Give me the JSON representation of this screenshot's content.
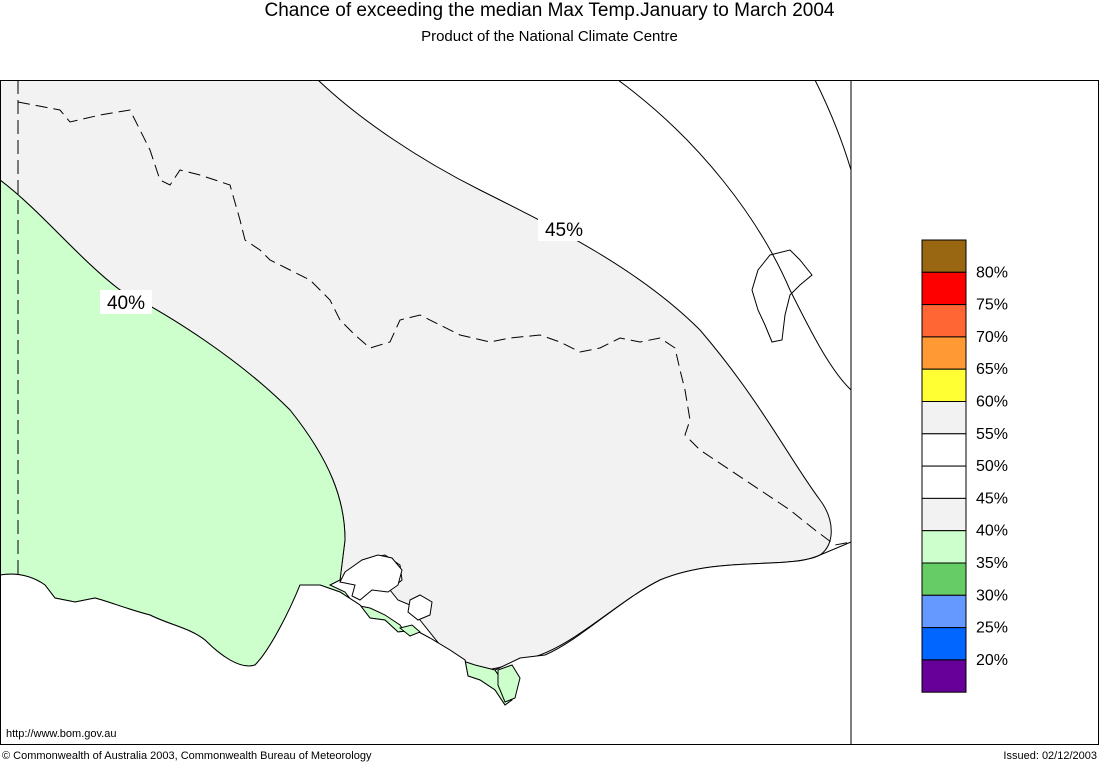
{
  "header": {
    "title": "Chance of exceeding the median Max Temp.January to March 2004",
    "subtitle": "Product of the National Climate Centre"
  },
  "map": {
    "contour_labels": [
      "40%",
      "45%"
    ],
    "colors": {
      "light_green": "#ccffcc",
      "light_grey": "#f2f2f2",
      "white": "#ffffff"
    }
  },
  "legend": {
    "items": [
      {
        "label": "80%",
        "color": "#996611"
      },
      {
        "label": "75%",
        "color": "#ff0000"
      },
      {
        "label": "70%",
        "color": "#ff6633"
      },
      {
        "label": "65%",
        "color": "#ff9933"
      },
      {
        "label": "60%",
        "color": "#ffff33"
      },
      {
        "label": "55%",
        "color": "#f2f2f2"
      },
      {
        "label": "50%",
        "color": "#ffffff"
      },
      {
        "label": "45%",
        "color": "#ffffff"
      },
      {
        "label": "40%",
        "color": "#f2f2f2"
      },
      {
        "label": "35%",
        "color": "#ccffcc"
      },
      {
        "label": "30%",
        "color": "#66cc66"
      },
      {
        "label": "25%",
        "color": "#6699ff"
      },
      {
        "label": "20%",
        "color": "#0066ff"
      },
      {
        "label": "",
        "color": "#660099"
      }
    ]
  },
  "footer": {
    "url": "http://www.bom.gov.au",
    "copyright": "© Commonwealth of Australia 2003, Commonwealth Bureau of Meteorology",
    "issued": "Issued: 02/12/2003"
  }
}
